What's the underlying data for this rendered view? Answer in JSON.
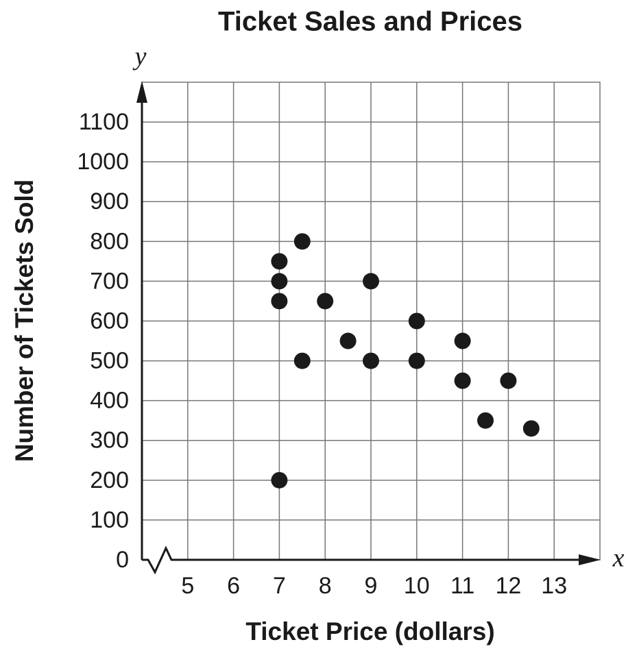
{
  "chart_data": {
    "type": "scatter",
    "title": "Ticket Sales and Prices",
    "x_label": "Ticket Price (dollars)",
    "y_label": "Number of Tickets Sold",
    "x_axis_name": "x",
    "y_axis_name": "y",
    "x": [
      7,
      7,
      7,
      7,
      7.5,
      7.5,
      8,
      8.5,
      9,
      9,
      10,
      10,
      11,
      11,
      11.5,
      12,
      12.5
    ],
    "values": [
      750,
      700,
      650,
      200,
      800,
      500,
      650,
      550,
      700,
      500,
      600,
      500,
      550,
      450,
      350,
      450,
      330
    ],
    "color": "#1a1a1a",
    "xlim": [
      4,
      14
    ],
    "xticks": [
      5,
      6,
      7,
      8,
      9,
      10,
      11,
      12,
      13
    ],
    "ylim": [
      0,
      1200
    ],
    "yticks": [
      0,
      100,
      200,
      300,
      400,
      500,
      600,
      700,
      800,
      900,
      1000,
      1100
    ],
    "grid": true
  }
}
